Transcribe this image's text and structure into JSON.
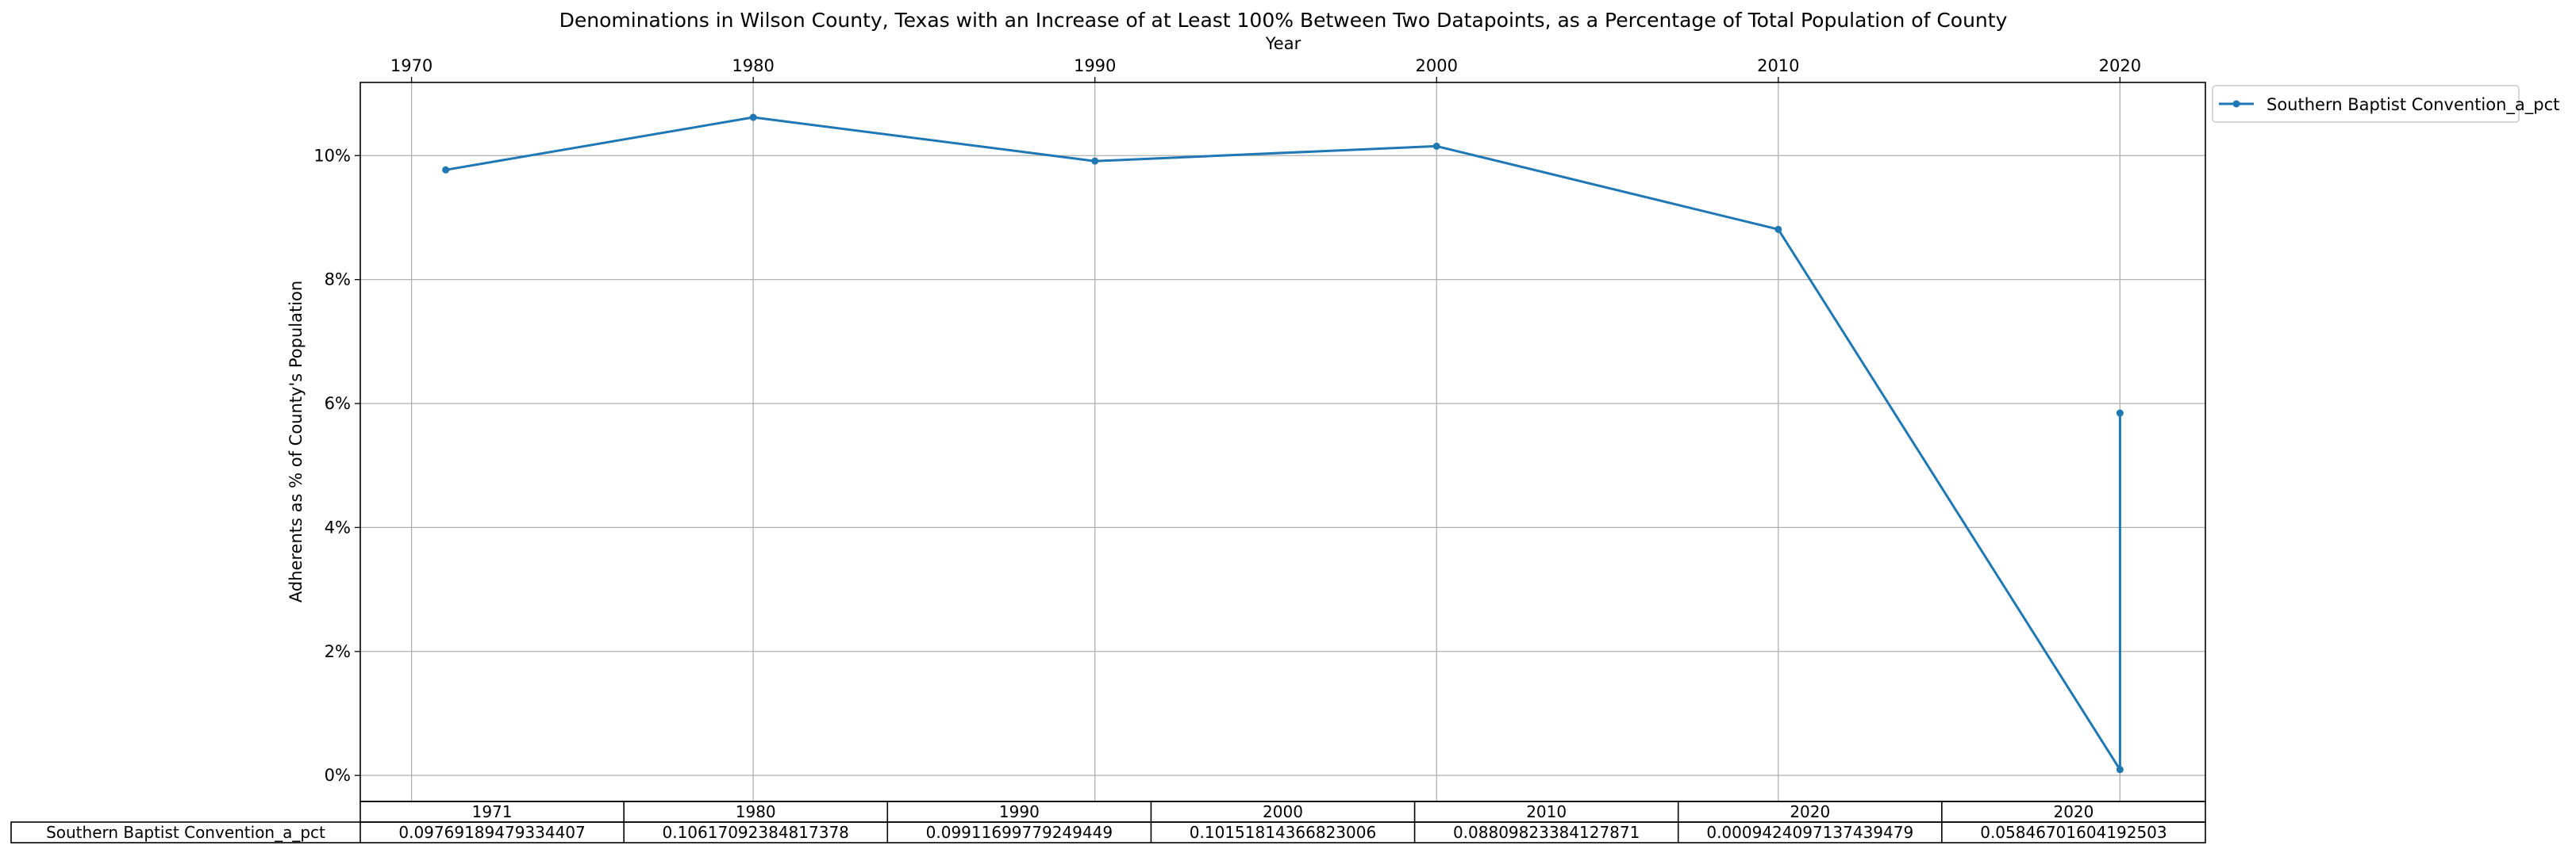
{
  "chart_data": {
    "type": "line",
    "title": "Denominations in Wilson County, Texas with an Increase of at Least 100% Between Two Datapoints, as a Percentage of Total Population of County",
    "xlabel": "Year",
    "ylabel": "Adherents as % of County's Population",
    "x_ticks": [
      "1970",
      "1980",
      "1990",
      "2000",
      "2010",
      "2020"
    ],
    "xlim": [
      1968.5,
      2022.5
    ],
    "y_ticks": [
      "0%",
      "2%",
      "4%",
      "6%",
      "8%",
      "10%"
    ],
    "ylim": [
      -0.0042,
      0.1118
    ],
    "grid": true,
    "legend_position": "outside-top-right",
    "series": [
      {
        "name": "Southern Baptist Convention_a_pct",
        "color": "#1f77b4",
        "x": [
          1971,
          1980,
          1990,
          2000,
          2010,
          2020,
          2020
        ],
        "values": [
          0.09769189479334407,
          0.10617092384817378,
          0.09911699779249449,
          0.10151814366823006,
          0.08809823384127871,
          0.0009424097137439479,
          0.05846701604192503
        ]
      }
    ],
    "table": {
      "columns": [
        "1971",
        "1980",
        "1990",
        "2000",
        "2010",
        "2020",
        "2020"
      ],
      "rows": [
        {
          "label": "Southern Baptist Convention_a_pct",
          "cells": [
            "0.09769189479334407",
            "0.10617092384817378",
            "0.09911699779249449",
            "0.10151814366823006",
            "0.08809823384127871",
            "0.0009424097137439479",
            "0.05846701604192503"
          ]
        }
      ]
    }
  }
}
